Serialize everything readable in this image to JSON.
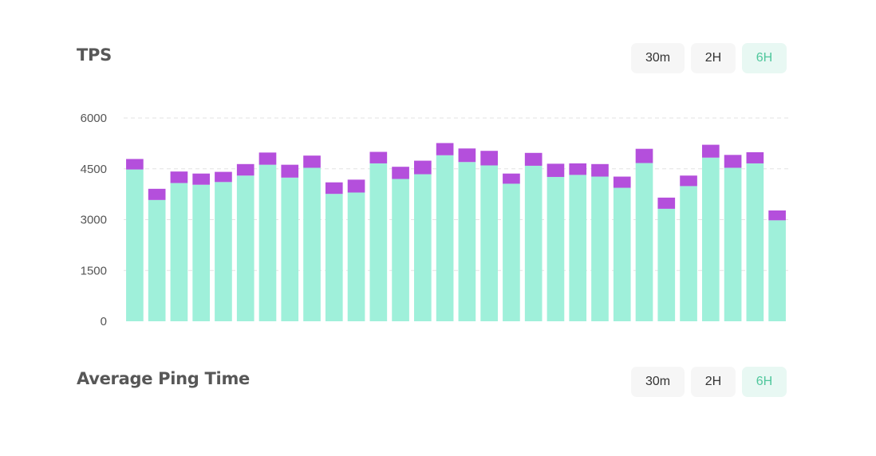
{
  "tps_section": {
    "title": "TPS",
    "timeframes": [
      "30m",
      "2H",
      "6H"
    ],
    "active_timeframe": "6H"
  },
  "ping_section": {
    "title": "Average Ping Time",
    "timeframes": [
      "30m",
      "2H",
      "6H"
    ],
    "active_timeframe": "6H"
  },
  "colors": {
    "primary_series": "#9ff0da",
    "secondary_series": "#b44fdc",
    "active_button_text": "#4fc79c",
    "active_button_bg": "#e8f8f3",
    "button_bg": "#f6f6f6"
  },
  "chart_data": {
    "type": "bar",
    "stacked": true,
    "title": "TPS",
    "xlabel": "",
    "ylabel": "",
    "ylim": [
      0,
      6000
    ],
    "yticks": [
      0,
      1500,
      3000,
      4500,
      6000
    ],
    "y_tick_labels": [
      "0",
      "1500",
      "3000",
      "4500",
      "6000"
    ],
    "grid": "horizontal-dashed",
    "legend": "none",
    "series": [
      {
        "color": "#9ff0da",
        "values": [
          4480,
          3580,
          4080,
          4030,
          4110,
          4300,
          4620,
          4240,
          4530,
          3760,
          3800,
          4660,
          4200,
          4340,
          4900,
          4700,
          4600,
          4060,
          4590,
          4260,
          4320,
          4270,
          3940,
          4670,
          3320,
          3990,
          4830,
          4530,
          4660,
          2980
        ]
      },
      {
        "color": "#b44fdc",
        "values": [
          310,
          330,
          340,
          330,
          300,
          340,
          360,
          380,
          360,
          340,
          380,
          340,
          360,
          400,
          360,
          400,
          430,
          300,
          380,
          390,
          340,
          370,
          330,
          420,
          330,
          310,
          380,
          380,
          330,
          290
        ]
      }
    ]
  }
}
